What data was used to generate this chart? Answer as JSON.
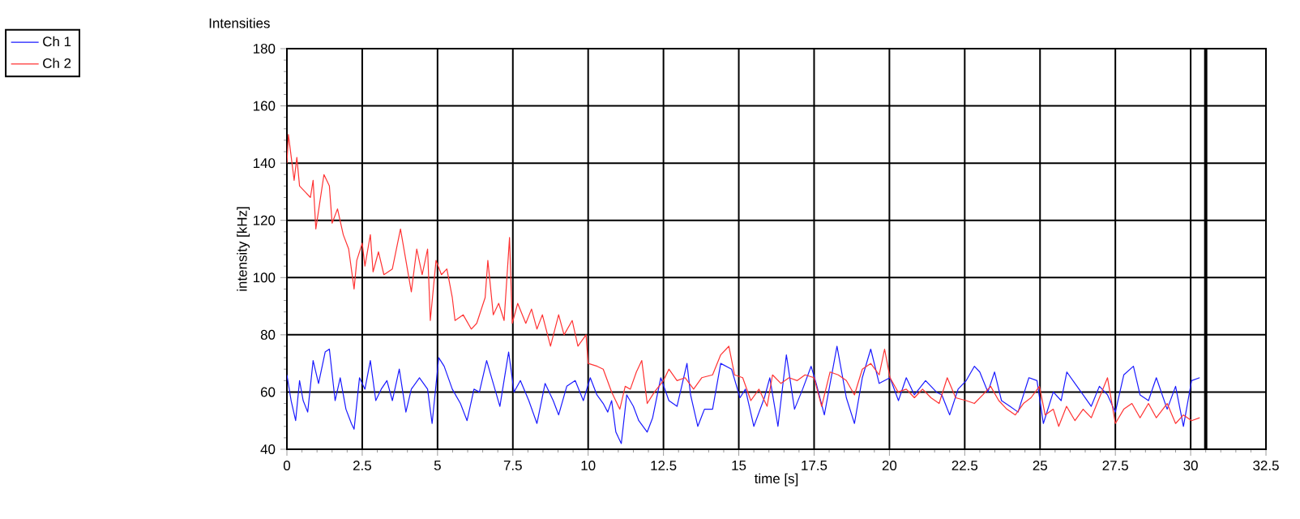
{
  "chart_data": {
    "type": "line",
    "title": "Intensities",
    "xlabel": "time [s]",
    "ylabel": "intensity [kHz]",
    "xlim": [
      0,
      32.5
    ],
    "ylim": [
      40,
      180
    ],
    "xticks": [
      0,
      2.5,
      5,
      7.5,
      10,
      12.5,
      15,
      17.5,
      20,
      22.5,
      25,
      27.5,
      30,
      32.5
    ],
    "yticks": [
      40,
      60,
      80,
      100,
      120,
      140,
      160,
      180
    ],
    "grid": true,
    "legend": "top left",
    "ref_lines": [
      {
        "axis": "x",
        "value": 30.5,
        "color": "#000000"
      }
    ],
    "series": [
      {
        "name": "Ch 1",
        "color": "#1a1aff",
        "x": [
          0,
          0.14,
          0.29,
          0.42,
          0.54,
          0.69,
          0.87,
          1.05,
          1.27,
          1.41,
          1.6,
          1.77,
          1.96,
          2.14,
          2.23,
          2.41,
          2.59,
          2.77,
          2.95,
          3.13,
          3.32,
          3.5,
          3.73,
          3.95,
          4.13,
          4.4,
          4.67,
          4.82,
          5.04,
          5.22,
          5.49,
          5.76,
          5.98,
          6.21,
          6.39,
          6.63,
          6.85,
          7.07,
          7.36,
          7.54,
          7.75,
          8.03,
          8.3,
          8.57,
          8.84,
          9.02,
          9.29,
          9.57,
          9.84,
          10.07,
          10.29,
          10.5,
          10.65,
          10.78,
          10.92,
          11.1,
          11.28,
          11.5,
          11.68,
          11.96,
          12.14,
          12.41,
          12.68,
          12.95,
          13.28,
          13.4,
          13.64,
          13.86,
          14.13,
          14.4,
          14.76,
          15.04,
          15.22,
          15.5,
          15.85,
          16.03,
          16.3,
          16.58,
          16.85,
          17.12,
          17.4,
          17.57,
          17.84,
          18.26,
          18.57,
          18.84,
          19.1,
          19.38,
          19.66,
          20.02,
          20.3,
          20.56,
          20.83,
          21.2,
          21.56,
          21.74,
          22.0,
          22.28,
          22.55,
          22.82,
          23.0,
          23.27,
          23.49,
          23.72,
          24.0,
          24.27,
          24.63,
          24.9,
          25.11,
          25.44,
          25.7,
          25.89,
          26.16,
          26.43,
          26.7,
          26.97,
          27.24,
          27.5,
          27.78,
          28.1,
          28.32,
          28.6,
          28.86,
          29.22,
          29.5,
          29.76,
          30.03,
          30.3
        ],
        "values": [
          66,
          57,
          50,
          64,
          57,
          53,
          71,
          63,
          74,
          75,
          57,
          65,
          54,
          49,
          47,
          65,
          61,
          71,
          57,
          61,
          64,
          57,
          68,
          53,
          61,
          65,
          61,
          49,
          72,
          69,
          61,
          56,
          50,
          61,
          60,
          71,
          63,
          55,
          74,
          60,
          64,
          57,
          49,
          63,
          57,
          52,
          62,
          64,
          57,
          65,
          59,
          56,
          53,
          57,
          46,
          42,
          59,
          55,
          50,
          46,
          51,
          65,
          57,
          55,
          70,
          59,
          48,
          54,
          54,
          70,
          68,
          58,
          61,
          48,
          58,
          65,
          48,
          73,
          54,
          61,
          69,
          63,
          52,
          76,
          58,
          49,
          65,
          75,
          63,
          65,
          57,
          65,
          59,
          64,
          60,
          59,
          52,
          61,
          64,
          69,
          67,
          60,
          67,
          57,
          55,
          53,
          65,
          64,
          49,
          60,
          57,
          67,
          63,
          59,
          55,
          62,
          59,
          53,
          66,
          69,
          59,
          57,
          65,
          54,
          62,
          48,
          64,
          65
        ]
      },
      {
        "name": "Ch 2",
        "color": "#ff3333",
        "x": [
          0,
          0.05,
          0.24,
          0.33,
          0.42,
          0.6,
          0.78,
          0.87,
          0.96,
          1.23,
          1.41,
          1.5,
          1.68,
          1.87,
          2.05,
          2.23,
          2.32,
          2.5,
          2.59,
          2.77,
          2.86,
          3.04,
          3.22,
          3.5,
          3.77,
          3.95,
          4.13,
          4.31,
          4.49,
          4.67,
          4.76,
          4.95,
          5.13,
          5.31,
          5.49,
          5.58,
          5.85,
          6.12,
          6.3,
          6.58,
          6.67,
          6.85,
          7.03,
          7.21,
          7.39,
          7.48,
          7.66,
          7.93,
          8.12,
          8.3,
          8.48,
          8.75,
          9.02,
          9.2,
          9.47,
          9.66,
          9.93,
          10.0,
          10.3,
          10.5,
          10.78,
          11.05,
          11.23,
          11.4,
          11.6,
          11.78,
          11.96,
          12.2,
          12.5,
          12.68,
          12.95,
          13.22,
          13.5,
          13.77,
          14.13,
          14.4,
          14.67,
          14.86,
          15.13,
          15.4,
          15.67,
          15.94,
          16.12,
          16.4,
          16.67,
          16.94,
          17.2,
          17.5,
          17.75,
          18.03,
          18.3,
          18.57,
          18.84,
          19.1,
          19.38,
          19.66,
          19.84,
          20.02,
          20.29,
          20.56,
          20.83,
          21.1,
          21.38,
          21.65,
          21.92,
          22.2,
          22.55,
          22.82,
          23.1,
          23.36,
          23.63,
          23.9,
          24.18,
          24.45,
          24.7,
          24.98,
          25.17,
          25.44,
          25.62,
          25.88,
          26.16,
          26.43,
          26.7,
          26.97,
          27.24,
          27.5,
          27.78,
          28.05,
          28.32,
          28.6,
          28.86,
          29.22,
          29.5,
          29.76,
          30.03,
          30.3
        ],
        "values": [
          140,
          150,
          134,
          142,
          132,
          130,
          128,
          134,
          117,
          136,
          132,
          119,
          124,
          115,
          110,
          96,
          106,
          112,
          104,
          115,
          102,
          109,
          101,
          103,
          117,
          106,
          95,
          110,
          101,
          110,
          85,
          106,
          101,
          103,
          93,
          85,
          87,
          82,
          84,
          93,
          106,
          87,
          91,
          85,
          114,
          84,
          91,
          84,
          89,
          82,
          87,
          76,
          87,
          80,
          85,
          76,
          80,
          70,
          69,
          68,
          60,
          54,
          62,
          61,
          67,
          71,
          56,
          60,
          64,
          68,
          64,
          65,
          61,
          65,
          66,
          73,
          76,
          66,
          65,
          57,
          61,
          55,
          66,
          63,
          65,
          64,
          66,
          65,
          55,
          67,
          66,
          64,
          59,
          68,
          70,
          66,
          75,
          65,
          60,
          61,
          58,
          61,
          58,
          56,
          65,
          58,
          57,
          56,
          59,
          62,
          57,
          54,
          52,
          56,
          58,
          62,
          52,
          54,
          48,
          55,
          50,
          54,
          51,
          58,
          65,
          49,
          54,
          56,
          51,
          56,
          51,
          56,
          49,
          52,
          50,
          51
        ]
      }
    ]
  }
}
